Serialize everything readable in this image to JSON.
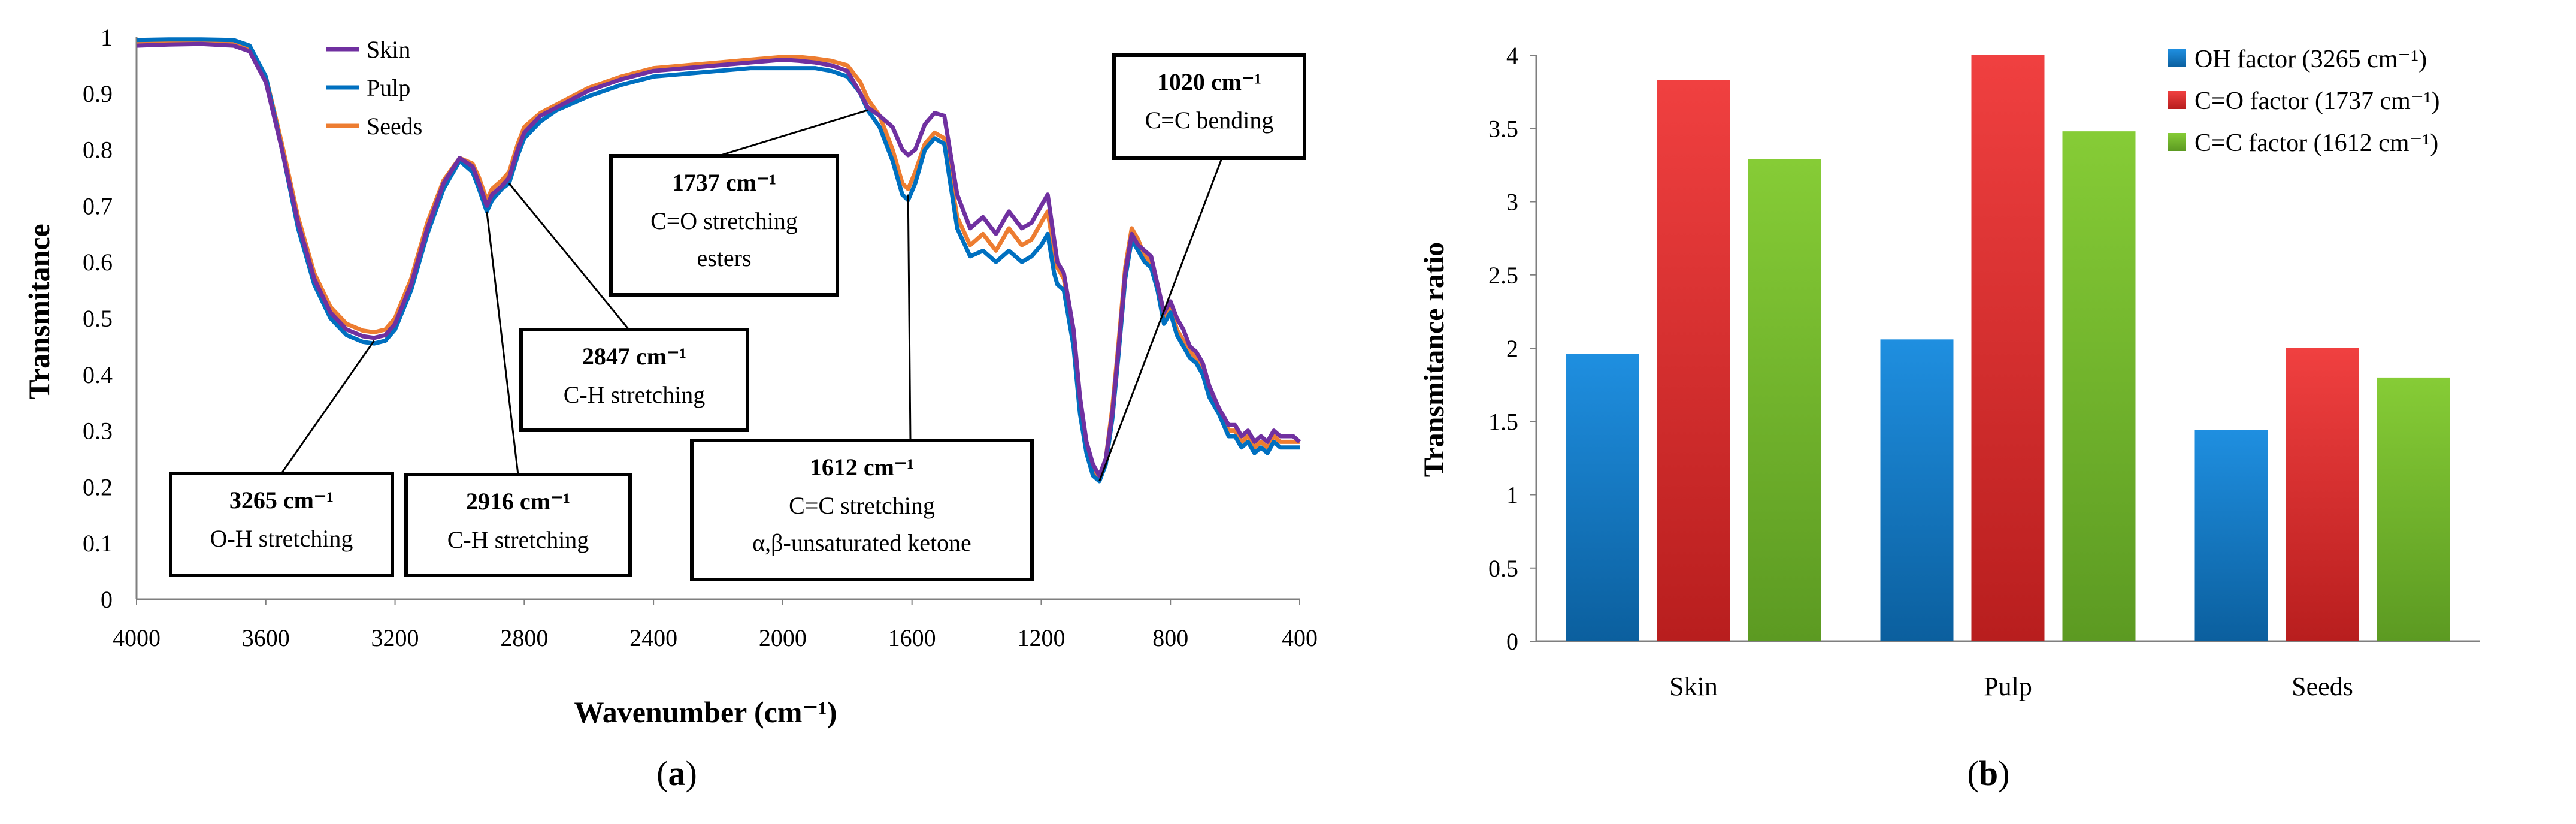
{
  "panel_a": {
    "panel_label": "a",
    "chart_data": {
      "type": "line",
      "xlabel": "Wavenumber (cm⁻¹)",
      "ylabel": "Transmitance",
      "xlim": [
        4000,
        400
      ],
      "ylim": [
        0,
        1
      ],
      "x_ticks": [
        4000,
        3600,
        3200,
        2800,
        2400,
        2000,
        1600,
        1200,
        800,
        400
      ],
      "y_ticks": [
        0,
        0.1,
        0.2,
        0.3,
        0.4,
        0.5,
        0.6,
        0.7,
        0.8,
        0.9,
        1
      ],
      "grid": false,
      "legend_position": "top-left",
      "series": [
        {
          "name": "Skin",
          "color": "#7030a0",
          "x": [
            4000,
            3900,
            3800,
            3700,
            3650,
            3600,
            3550,
            3500,
            3450,
            3400,
            3350,
            3300,
            3265,
            3230,
            3200,
            3150,
            3100,
            3050,
            3000,
            2960,
            2940,
            2916,
            2900,
            2870,
            2847,
            2820,
            2800,
            2750,
            2700,
            2600,
            2500,
            2400,
            2300,
            2200,
            2100,
            2000,
            1950,
            1900,
            1850,
            1800,
            1760,
            1737,
            1700,
            1660,
            1630,
            1612,
            1590,
            1560,
            1530,
            1500,
            1460,
            1420,
            1380,
            1340,
            1300,
            1260,
            1230,
            1200,
            1180,
            1160,
            1150,
            1130,
            1100,
            1080,
            1060,
            1040,
            1020,
            1000,
            980,
            960,
            940,
            920,
            900,
            880,
            860,
            840,
            820,
            800,
            780,
            760,
            740,
            720,
            700,
            680,
            650,
            620,
            600,
            580,
            560,
            540,
            520,
            500,
            480,
            460,
            440,
            420,
            400
          ],
          "y": [
            0.985,
            0.987,
            0.988,
            0.985,
            0.975,
            0.92,
            0.8,
            0.67,
            0.57,
            0.51,
            0.48,
            0.468,
            0.465,
            0.47,
            0.49,
            0.56,
            0.66,
            0.74,
            0.785,
            0.77,
            0.74,
            0.7,
            0.72,
            0.735,
            0.75,
            0.8,
            0.83,
            0.86,
            0.875,
            0.905,
            0.925,
            0.94,
            0.945,
            0.95,
            0.955,
            0.96,
            0.958,
            0.955,
            0.95,
            0.94,
            0.9,
            0.875,
            0.86,
            0.84,
            0.8,
            0.79,
            0.8,
            0.845,
            0.865,
            0.86,
            0.72,
            0.66,
            0.68,
            0.65,
            0.69,
            0.66,
            0.67,
            0.7,
            0.72,
            0.64,
            0.6,
            0.58,
            0.48,
            0.36,
            0.28,
            0.24,
            0.22,
            0.25,
            0.33,
            0.45,
            0.58,
            0.65,
            0.63,
            0.62,
            0.61,
            0.56,
            0.51,
            0.53,
            0.5,
            0.48,
            0.45,
            0.44,
            0.42,
            0.38,
            0.34,
            0.31,
            0.31,
            0.29,
            0.3,
            0.28,
            0.29,
            0.28,
            0.3,
            0.29,
            0.29,
            0.29,
            0.28
          ]
        },
        {
          "name": "Pulp",
          "color": "#0070c0",
          "x": [
            4000,
            3900,
            3800,
            3700,
            3650,
            3600,
            3550,
            3500,
            3450,
            3400,
            3350,
            3300,
            3265,
            3230,
            3200,
            3150,
            3100,
            3050,
            3000,
            2960,
            2940,
            2916,
            2900,
            2870,
            2847,
            2820,
            2800,
            2750,
            2700,
            2600,
            2500,
            2400,
            2300,
            2200,
            2100,
            2000,
            1950,
            1900,
            1850,
            1800,
            1760,
            1737,
            1700,
            1660,
            1630,
            1612,
            1590,
            1560,
            1530,
            1500,
            1460,
            1420,
            1380,
            1340,
            1300,
            1260,
            1230,
            1200,
            1180,
            1160,
            1150,
            1130,
            1100,
            1080,
            1060,
            1040,
            1020,
            1000,
            980,
            960,
            940,
            920,
            900,
            880,
            860,
            840,
            820,
            800,
            780,
            760,
            740,
            720,
            700,
            680,
            650,
            620,
            600,
            580,
            560,
            540,
            520,
            500,
            480,
            460,
            440,
            420,
            400
          ],
          "y": [
            0.995,
            0.996,
            0.996,
            0.995,
            0.985,
            0.93,
            0.8,
            0.66,
            0.56,
            0.5,
            0.47,
            0.458,
            0.455,
            0.46,
            0.48,
            0.55,
            0.65,
            0.73,
            0.78,
            0.76,
            0.73,
            0.69,
            0.71,
            0.73,
            0.74,
            0.79,
            0.82,
            0.85,
            0.87,
            0.895,
            0.915,
            0.93,
            0.935,
            0.94,
            0.945,
            0.945,
            0.945,
            0.945,
            0.94,
            0.93,
            0.9,
            0.87,
            0.84,
            0.78,
            0.72,
            0.71,
            0.74,
            0.8,
            0.82,
            0.81,
            0.66,
            0.61,
            0.62,
            0.6,
            0.62,
            0.6,
            0.61,
            0.63,
            0.65,
            0.58,
            0.56,
            0.55,
            0.45,
            0.33,
            0.26,
            0.22,
            0.21,
            0.24,
            0.32,
            0.44,
            0.57,
            0.64,
            0.62,
            0.6,
            0.59,
            0.55,
            0.49,
            0.51,
            0.47,
            0.45,
            0.43,
            0.42,
            0.4,
            0.36,
            0.33,
            0.29,
            0.29,
            0.27,
            0.28,
            0.26,
            0.27,
            0.26,
            0.28,
            0.27,
            0.27,
            0.27,
            0.27
          ]
        },
        {
          "name": "Seeds",
          "color": "#ed7d31",
          "x": [
            4000,
            3900,
            3800,
            3700,
            3650,
            3600,
            3550,
            3500,
            3450,
            3400,
            3350,
            3300,
            3265,
            3230,
            3200,
            3150,
            3100,
            3050,
            3000,
            2960,
            2940,
            2916,
            2900,
            2870,
            2847,
            2820,
            2800,
            2750,
            2700,
            2600,
            2500,
            2400,
            2300,
            2200,
            2100,
            2000,
            1950,
            1900,
            1850,
            1800,
            1760,
            1737,
            1700,
            1660,
            1630,
            1612,
            1590,
            1560,
            1530,
            1500,
            1460,
            1420,
            1380,
            1340,
            1300,
            1260,
            1230,
            1200,
            1180,
            1160,
            1150,
            1130,
            1100,
            1080,
            1060,
            1040,
            1020,
            1000,
            980,
            960,
            940,
            920,
            900,
            880,
            860,
            840,
            820,
            800,
            780,
            760,
            740,
            720,
            700,
            680,
            650,
            620,
            600,
            580,
            560,
            540,
            520,
            500,
            480,
            460,
            440,
            420,
            400
          ],
          "y": [
            0.99,
            0.992,
            0.994,
            0.992,
            0.98,
            0.93,
            0.81,
            0.68,
            0.58,
            0.52,
            0.49,
            0.478,
            0.475,
            0.48,
            0.5,
            0.57,
            0.67,
            0.745,
            0.785,
            0.775,
            0.75,
            0.71,
            0.73,
            0.745,
            0.76,
            0.81,
            0.84,
            0.865,
            0.88,
            0.91,
            0.93,
            0.945,
            0.95,
            0.955,
            0.96,
            0.965,
            0.965,
            0.962,
            0.958,
            0.95,
            0.92,
            0.89,
            0.86,
            0.8,
            0.74,
            0.73,
            0.76,
            0.81,
            0.83,
            0.82,
            0.68,
            0.63,
            0.65,
            0.62,
            0.66,
            0.63,
            0.64,
            0.67,
            0.69,
            0.62,
            0.59,
            0.57,
            0.47,
            0.35,
            0.27,
            0.23,
            0.215,
            0.25,
            0.34,
            0.46,
            0.59,
            0.66,
            0.64,
            0.61,
            0.6,
            0.56,
            0.5,
            0.52,
            0.48,
            0.46,
            0.44,
            0.43,
            0.41,
            0.37,
            0.34,
            0.3,
            0.3,
            0.28,
            0.29,
            0.27,
            0.28,
            0.27,
            0.29,
            0.28,
            0.28,
            0.28,
            0.28
          ]
        }
      ],
      "annotations": [
        {
          "title": "3265 cm⁻¹",
          "lines": [
            "O-H stretching"
          ],
          "target_x": 3265,
          "target_y": 0.46
        },
        {
          "title": "2916 cm⁻¹",
          "lines": [
            "C-H stretching"
          ],
          "target_x": 2916,
          "target_y": 0.69
        },
        {
          "title": "2847 cm⁻¹",
          "lines": [
            "C-H stretching"
          ],
          "target_x": 2847,
          "target_y": 0.74
        },
        {
          "title": "1737 cm⁻¹",
          "lines": [
            "C=O stretching",
            "esters"
          ],
          "target_x": 1737,
          "target_y": 0.87
        },
        {
          "title": "1612 cm⁻¹",
          "lines": [
            "C=C stretching",
            "α,β-unsaturated ketone"
          ],
          "target_x": 1612,
          "target_y": 0.72
        },
        {
          "title": "1020 cm⁻¹",
          "lines": [
            "C=C bending"
          ],
          "target_x": 1020,
          "target_y": 0.21
        }
      ]
    }
  },
  "panel_b": {
    "panel_label": "b",
    "chart_data": {
      "type": "bar",
      "ylabel": "Transmitance ratio",
      "ylim": [
        0,
        4
      ],
      "y_ticks": [
        0,
        0.5,
        1,
        1.5,
        2,
        2.5,
        3,
        3.5,
        4
      ],
      "categories": [
        "Skin",
        "Pulp",
        "Seeds"
      ],
      "grid": false,
      "legend_position": "top-right",
      "series": [
        {
          "name": "OH factor (3265 cm⁻¹)",
          "color": "#1e88d0",
          "values": [
            1.96,
            2.06,
            1.44
          ]
        },
        {
          "name": "C=O factor (1737 cm⁻¹)",
          "color": "#e53935",
          "values": [
            3.83,
            4.0,
            2.0
          ]
        },
        {
          "name": "C=C factor (1612 cm⁻¹)",
          "color": "#7cb82f",
          "values": [
            3.29,
            3.48,
            1.8
          ]
        }
      ]
    }
  }
}
